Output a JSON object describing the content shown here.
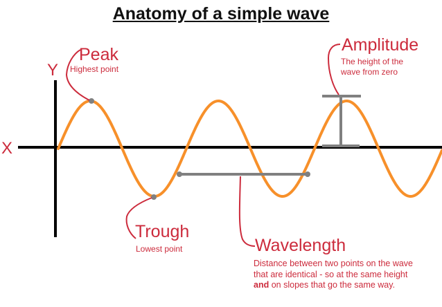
{
  "title": "Anatomy of a simple wave",
  "axes": {
    "x_label": "X",
    "y_label": "Y"
  },
  "labels": {
    "peak": {
      "name": "Peak",
      "description": "Highest point"
    },
    "trough": {
      "name": "Trough",
      "description": "Lowest point"
    },
    "amplitude": {
      "name": "Amplitude",
      "description_line1": "The height of the",
      "description_line2": "wave from zero"
    },
    "wavelength": {
      "name": "Wavelength",
      "description_part1": "Distance between two points on the wave that are identical - so at the same height ",
      "description_bold": "and",
      "description_part2": " on slopes that go the same way."
    }
  },
  "colors": {
    "wave": "#f7902a",
    "annotation": "#cc2b3c",
    "axis": "#000000",
    "marker": "#808080"
  }
}
